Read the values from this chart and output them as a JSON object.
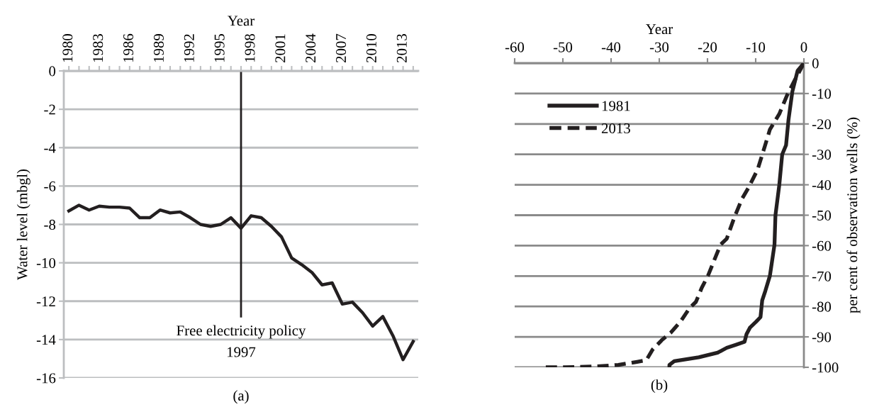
{
  "chart_data": [
    {
      "type": "line",
      "xlabel": "Year",
      "ylabel": "Water level (mbgl)",
      "x": [
        1980,
        1981,
        1982,
        1983,
        1984,
        1985,
        1986,
        1987,
        1988,
        1989,
        1990,
        1991,
        1992,
        1993,
        1994,
        1995,
        1996,
        1997,
        1998,
        1999,
        2000,
        2001,
        2002,
        2003,
        2004,
        2005,
        2006,
        2007,
        2008,
        2009,
        2010,
        2011,
        2012,
        2013,
        2014
      ],
      "series": [
        {
          "color": "#231f20",
          "values": [
            -7.3,
            -7.0,
            -7.25,
            -7.05,
            -7.1,
            -7.1,
            -7.15,
            -7.65,
            -7.65,
            -7.25,
            -7.4,
            -7.35,
            -7.65,
            -8.0,
            -8.1,
            -8.0,
            -7.65,
            -8.2,
            -7.55,
            -7.65,
            -8.1,
            -8.65,
            -9.75,
            -10.1,
            -10.5,
            -11.15,
            -11.05,
            -12.15,
            -12.05,
            -12.6,
            -13.3,
            -12.8,
            -13.8,
            -15.05,
            -14.1
          ]
        }
      ],
      "xlim": [
        1979.5,
        2014.5
      ],
      "xticks": [
        {
          "value": 1980,
          "label": "1980"
        },
        {
          "value": 1981,
          "label": null
        },
        {
          "value": 1982,
          "label": null
        },
        {
          "value": 1983,
          "label": "1983"
        },
        {
          "value": 1984,
          "label": null
        },
        {
          "value": 1985,
          "label": null
        },
        {
          "value": 1986,
          "label": "1986"
        },
        {
          "value": 1987,
          "label": null
        },
        {
          "value": 1988,
          "label": null
        },
        {
          "value": 1989,
          "label": "1989"
        },
        {
          "value": 1990,
          "label": null
        },
        {
          "value": 1991,
          "label": null
        },
        {
          "value": 1992,
          "label": "1992"
        },
        {
          "value": 1993,
          "label": null
        },
        {
          "value": 1994,
          "label": null
        },
        {
          "value": 1995,
          "label": "1995"
        },
        {
          "value": 1996,
          "label": null
        },
        {
          "value": 1997,
          "label": null
        },
        {
          "value": 1998,
          "label": "1998"
        },
        {
          "value": 1999,
          "label": null
        },
        {
          "value": 2000,
          "label": null
        },
        {
          "value": 2001,
          "label": "2001"
        },
        {
          "value": 2002,
          "label": null
        },
        {
          "value": 2003,
          "label": null
        },
        {
          "value": 2004,
          "label": "2004"
        },
        {
          "value": 2005,
          "label": null
        },
        {
          "value": 2006,
          "label": null
        },
        {
          "value": 2007,
          "label": "2007"
        },
        {
          "value": 2008,
          "label": null
        },
        {
          "value": 2009,
          "label": null
        },
        {
          "value": 2010,
          "label": "2010"
        },
        {
          "value": 2011,
          "label": null
        },
        {
          "value": 2012,
          "label": null
        },
        {
          "value": 2013,
          "label": "2013"
        },
        {
          "value": 2014,
          "label": null
        }
      ],
      "ylim": [
        -16,
        0
      ],
      "yticks": [
        -16,
        -14,
        -12,
        -10,
        -8,
        -6,
        -4,
        -2,
        0
      ],
      "grid": "y",
      "line_style": "solid",
      "marker": "none",
      "ref_lines": [
        {
          "axis": "x",
          "value": 1997,
          "label": "Free electricity policy",
          "color": "#231f20",
          "line_style": "solid"
        }
      ],
      "annotations": [
        "1997",
        "(a)"
      ]
    },
    {
      "type": "line",
      "xlabel": "Year",
      "ylabel": "per cent of observation wells (%)",
      "series": [
        {
          "name": "1981",
          "color": "#231f20",
          "line_style": "solid",
          "x": [
            0,
            -1.3,
            -2.4,
            -3.2,
            -3.7,
            -4.5,
            -5.1,
            -5.9,
            -6.1,
            -7.05,
            -8.0,
            -8.65,
            -9.0,
            -9.9,
            -11.2,
            -11.9,
            -12.3,
            -14.1,
            -16.0,
            -17.9,
            -21.8,
            -26.9,
            -27.9,
            -27.9
          ],
          "values": [
            0,
            -2.5,
            -9.4,
            -18.7,
            -27,
            -30,
            -40,
            -50,
            -59.7,
            -69.9,
            -74.9,
            -78,
            -83.5,
            -85,
            -87,
            -89.1,
            -91.6,
            -92.6,
            -93.6,
            -95.2,
            -96.7,
            -98.0,
            -99.2,
            -100
          ]
        },
        {
          "name": "2013",
          "color": "#231f20",
          "line_style": "dashed",
          "x": [
            0,
            -1.9,
            -3.5,
            -5.1,
            -7.05,
            -8.0,
            -9.6,
            -11.5,
            -12.8,
            -14.4,
            -16.0,
            -17.3,
            -18.6,
            -19.9,
            -21.2,
            -22.4,
            -23.7,
            -25.6,
            -27.6,
            -29.5,
            -31.4,
            -32.7,
            -34.6,
            -38.5,
            -42.9,
            -49.4,
            -53.8
          ],
          "values": [
            0,
            -5.6,
            -10.6,
            -16.7,
            -21.8,
            -26.8,
            -35,
            -41,
            -44.5,
            -50.6,
            -57.7,
            -59.7,
            -64.8,
            -69.9,
            -73.9,
            -78.5,
            -80.5,
            -85,
            -88.6,
            -91.1,
            -94.2,
            -97.7,
            -98.2,
            -99.2,
            -99.7,
            -100,
            -100
          ]
        }
      ],
      "xlim": [
        -60,
        0
      ],
      "xticks": [
        -60,
        -50,
        -40,
        -30,
        -20,
        -10,
        0
      ],
      "ylim": [
        -100,
        0
      ],
      "yticks": [
        -100,
        -90,
        -80,
        -70,
        -60,
        -50,
        -40,
        -30,
        -20,
        -10,
        0
      ],
      "grid": "y",
      "legend": "top left",
      "marker": "none",
      "annotations": [
        "(b)"
      ]
    }
  ]
}
